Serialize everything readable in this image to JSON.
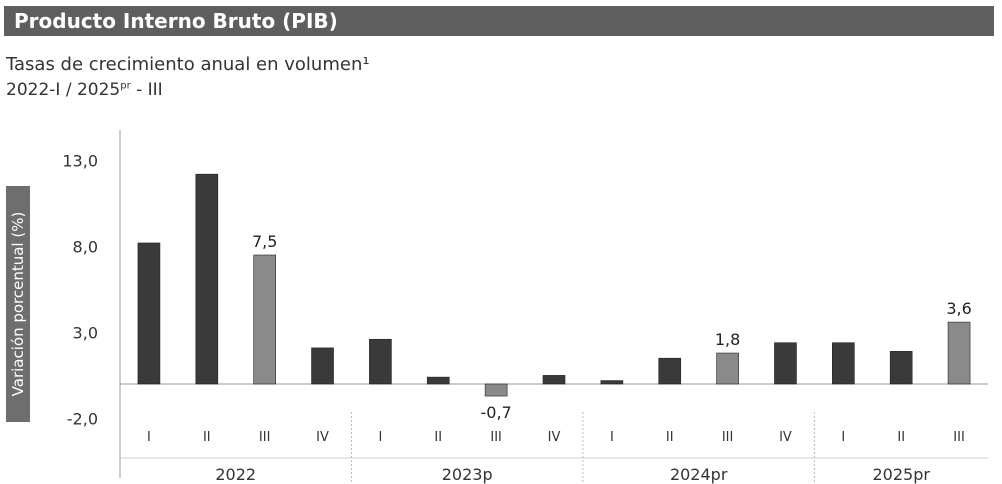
{
  "header": {
    "title": "Producto Interno Bruto (PIB)",
    "subtitle": "Tasas de crecimiento anual en volumen¹",
    "period_start": "2022-I / 2025",
    "period_sup": "pr",
    "period_end": " - III"
  },
  "colors": {
    "title_bg": "#5e5e5e",
    "bar_dark": "#3a3a3a",
    "bar_light": "#8a8a8a",
    "axis": "#999999"
  },
  "chart_data": {
    "type": "bar",
    "ylabel": "Variación porcentual (%)",
    "ylim": [
      -2.0,
      13.0
    ],
    "yticks": [
      -2.0,
      3.0,
      8.0,
      13.0
    ],
    "ytick_labels": [
      "-2,0",
      "3,0",
      "8,0",
      "13,0"
    ],
    "categories": [
      "I",
      "II",
      "III",
      "IV",
      "I",
      "II",
      "III",
      "IV",
      "I",
      "II",
      "III",
      "IV",
      "I",
      "II",
      "III"
    ],
    "groups": [
      {
        "label": "2022",
        "count": 4
      },
      {
        "label": "2023p",
        "count": 4
      },
      {
        "label": "2024pr",
        "count": 4
      },
      {
        "label": "2025pr",
        "count": 3
      }
    ],
    "values": [
      8.2,
      12.2,
      7.5,
      2.1,
      2.6,
      0.4,
      -0.7,
      0.5,
      0.2,
      1.5,
      1.8,
      2.4,
      2.4,
      1.9,
      3.6
    ],
    "highlight": [
      false,
      false,
      true,
      false,
      false,
      false,
      true,
      false,
      false,
      false,
      true,
      false,
      false,
      false,
      true
    ],
    "data_labels": [
      "",
      "",
      "7,5",
      "",
      "",
      "",
      "-0,7",
      "",
      "",
      "",
      "1,8",
      "",
      "",
      "",
      "3,6"
    ]
  }
}
